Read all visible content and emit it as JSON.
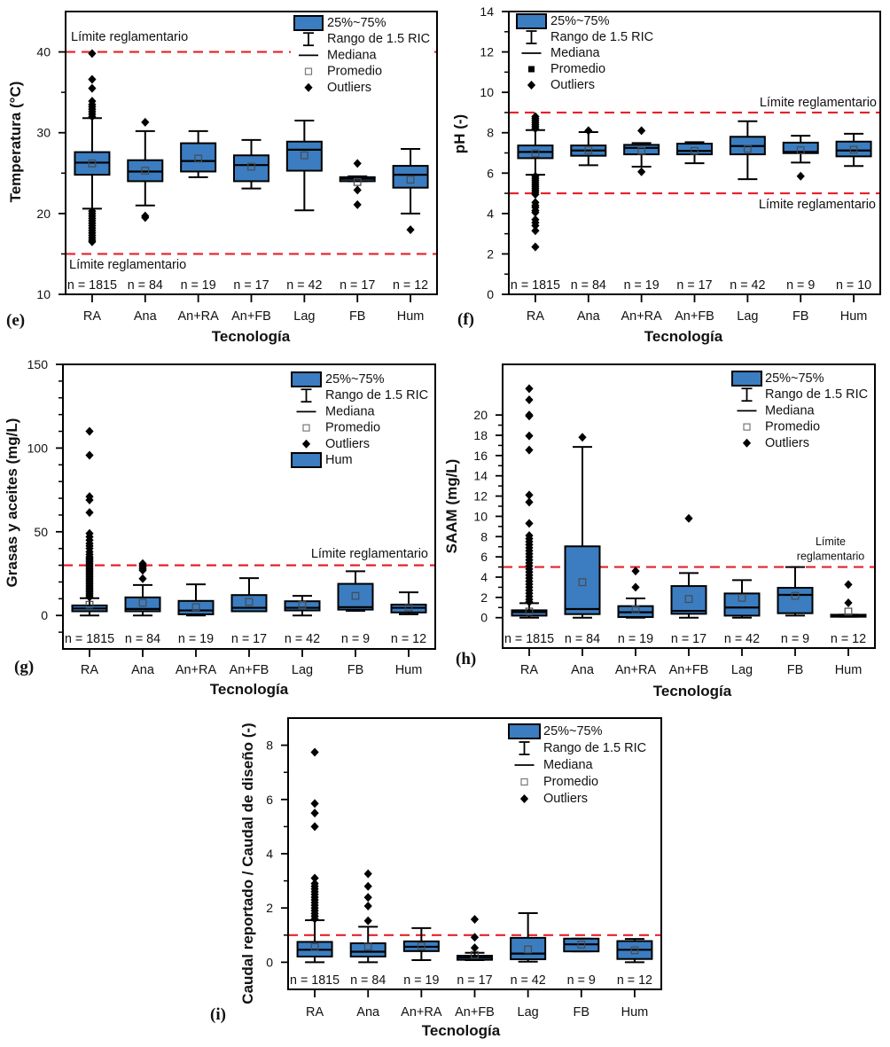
{
  "colors": {
    "box_fill": "#3b7dc0",
    "box_stroke": "#000000",
    "reference_line": "#e8202a",
    "outlier": "#000000",
    "mean_marker": "#4a4a4a"
  },
  "chart_data": [
    {
      "panel_label": "(e)",
      "type": "boxplot",
      "xlabel": "Tecnología",
      "ylabel": "Temperatura (°C)",
      "ylim": [
        10,
        45
      ],
      "yticks": [
        10,
        20,
        30,
        40
      ],
      "yminor_ticks": [
        15,
        25,
        35
      ],
      "grid": false,
      "categories": [
        "RA",
        "Ana",
        "An+RA",
        "An+FB",
        "Lag",
        "FB",
        "Hum"
      ],
      "n_labels": [
        "n = 1815",
        "n = 84",
        "n = 19",
        "n = 17",
        "n = 42",
        "n = 17",
        "n = 12"
      ],
      "series": [
        {
          "category": "RA",
          "q1": 24.8,
          "median": 26.3,
          "q3": 27.6,
          "whisker_low": 20.6,
          "whisker_high": 31.8,
          "mean": 26.2,
          "outliers": [
            39.8,
            36.6,
            35.5,
            33.9,
            33.5,
            33.2,
            32.9,
            32.6,
            32.3,
            32.0,
            20.3,
            20.0,
            19.7,
            19.4,
            19.1,
            18.8,
            18.5,
            18.2,
            17.9,
            17.6,
            17.3,
            17.0,
            16.7,
            16.5
          ]
        },
        {
          "category": "Ana",
          "q1": 24.0,
          "median": 25.2,
          "q3": 26.6,
          "whisker_low": 21.0,
          "whisker_high": 30.2,
          "mean": 25.3,
          "outliers": [
            31.3,
            19.7,
            19.5
          ]
        },
        {
          "category": "An+RA",
          "q1": 25.2,
          "median": 26.5,
          "q3": 28.7,
          "whisker_low": 24.5,
          "whisker_high": 30.2,
          "mean": 26.8,
          "outliers": []
        },
        {
          "category": "An+FB",
          "q1": 24.0,
          "median": 26.0,
          "q3": 27.2,
          "whisker_low": 23.1,
          "whisker_high": 29.1,
          "mean": 25.8,
          "outliers": []
        },
        {
          "category": "Lag",
          "q1": 25.3,
          "median": 27.9,
          "q3": 28.9,
          "whisker_low": 20.4,
          "whisker_high": 31.5,
          "mean": 27.2,
          "outliers": []
        },
        {
          "category": "FB",
          "q1": 24.0,
          "median": 24.3,
          "q3": 24.5,
          "whisker_low": 24.0,
          "whisker_high": 24.6,
          "mean": 23.9,
          "outliers": [
            26.2,
            22.9,
            21.1
          ]
        },
        {
          "category": "Hum",
          "q1": 23.2,
          "median": 24.8,
          "q3": 25.9,
          "whisker_low": 20.0,
          "whisker_high": 28.0,
          "mean": 24.2,
          "outliers": [
            18.0
          ]
        }
      ],
      "reference_lines": [
        {
          "value": 40,
          "style": "dashed",
          "label": [
            "Límite reglamentario"
          ],
          "label_position": "above-left"
        },
        {
          "value": 15,
          "style": "dashed",
          "label": [
            "Límite reglamentario"
          ],
          "label_position": "below-left"
        }
      ],
      "legend": {
        "position": "top-right",
        "items": [
          {
            "label": "25%~75%",
            "symbol": "box"
          },
          {
            "label": "Rango de 1.5 RIC",
            "symbol": "whisker"
          },
          {
            "label": "Mediana",
            "symbol": "line"
          },
          {
            "label": "Promedio",
            "symbol": "hollow-square"
          },
          {
            "label": "Outliers",
            "symbol": "diamond"
          }
        ]
      }
    },
    {
      "panel_label": "(f)",
      "type": "boxplot",
      "xlabel": "Tecnología",
      "ylabel": "pH (-)",
      "ylim": [
        0,
        14
      ],
      "yticks": [
        0,
        2,
        4,
        6,
        8,
        10,
        12,
        14
      ],
      "yminor_ticks": [
        1,
        3,
        5,
        7,
        9,
        11,
        13
      ],
      "grid": false,
      "categories": [
        "RA",
        "Ana",
        "An+RA",
        "An+FB",
        "Lag",
        "FB",
        "Hum"
      ],
      "n_labels": [
        "n = 1815",
        "n = 84",
        "n = 19",
        "n = 17",
        "n = 42",
        "n = 9",
        "n = 10"
      ],
      "series": [
        {
          "category": "RA",
          "q1": 6.74,
          "median": 7.05,
          "q3": 7.37,
          "whisker_low": 5.92,
          "whisker_high": 8.13,
          "mean": 6.98,
          "outliers": [
            8.8,
            8.7,
            8.6,
            8.5,
            8.4,
            8.3,
            8.2,
            5.85,
            5.75,
            5.65,
            5.55,
            5.45,
            5.35,
            5.25,
            5.15,
            5.05,
            4.95,
            4.55,
            4.4,
            4.3,
            4.15,
            4.05,
            3.7,
            3.55,
            3.4,
            3.15,
            2.35
          ]
        },
        {
          "category": "Ana",
          "q1": 6.86,
          "median": 7.12,
          "q3": 7.37,
          "whisker_low": 6.39,
          "whisker_high": 8.03,
          "mean": 7.15,
          "outliers": [
            8.1
          ]
        },
        {
          "category": "An+RA",
          "q1": 6.93,
          "median": 7.25,
          "q3": 7.4,
          "whisker_low": 6.32,
          "whisker_high": 7.49,
          "mean": 7.1,
          "outliers": [
            8.1,
            6.07
          ]
        },
        {
          "category": "An+FB",
          "q1": 6.93,
          "median": 7.1,
          "q3": 7.46,
          "whisker_low": 6.49,
          "whisker_high": 7.53,
          "mean": 7.1,
          "outliers": []
        },
        {
          "category": "Lag",
          "q1": 6.93,
          "median": 7.34,
          "q3": 7.8,
          "whisker_low": 5.7,
          "whisker_high": 8.57,
          "mean": 7.2,
          "outliers": []
        },
        {
          "category": "FB",
          "q1": 6.99,
          "median": 7.05,
          "q3": 7.51,
          "whisker_low": 6.52,
          "whisker_high": 7.85,
          "mean": 7.13,
          "outliers": [
            5.85
          ]
        },
        {
          "category": "Hum",
          "q1": 6.83,
          "median": 7.12,
          "q3": 7.56,
          "whisker_low": 6.35,
          "whisker_high": 7.95,
          "mean": 7.16,
          "outliers": []
        }
      ],
      "reference_lines": [
        {
          "value": 9,
          "style": "dashed",
          "label": [
            "Límite reglamentario"
          ],
          "label_position": "above-right"
        },
        {
          "value": 5,
          "style": "dashed",
          "label": [
            "Límite reglamentario"
          ],
          "label_position": "below-right"
        }
      ],
      "legend": {
        "position": "top-left",
        "items": [
          {
            "label": "25%~75%",
            "symbol": "box"
          },
          {
            "label": "Rango de 1.5 RIC",
            "symbol": "whisker"
          },
          {
            "label": "Mediana",
            "symbol": "line"
          },
          {
            "label": "Promedio",
            "symbol": "filled-square"
          },
          {
            "label": "Outliers",
            "symbol": "diamond"
          }
        ]
      }
    },
    {
      "panel_label": "(g)",
      "type": "boxplot",
      "xlabel": "Tecnología",
      "ylabel": "Grasas y aceites (mg/L)",
      "ylim": [
        -20,
        150
      ],
      "yticks": [
        0,
        50,
        100,
        150
      ],
      "yminor_ticks": [
        -10,
        10,
        20,
        30,
        40,
        60,
        70,
        80,
        90,
        110,
        120,
        130,
        140
      ],
      "grid": false,
      "categories": [
        "RA",
        "Ana",
        "An+RA",
        "An+FB",
        "Lag",
        "FB",
        "Hum"
      ],
      "n_labels": [
        "n = 1815",
        "n = 84",
        "n = 19",
        "n = 17",
        "n = 42",
        "n = 9",
        "n = 12"
      ],
      "series": [
        {
          "category": "RA",
          "q1": 2.5,
          "median": 4.2,
          "q3": 6.0,
          "whisker_low": 0,
          "whisker_high": 10.3,
          "mean": 6.4,
          "outliers": [
            110,
            95.7,
            71,
            69,
            61.5,
            49,
            47,
            45,
            43,
            41.5,
            40,
            38,
            36.5,
            35,
            34,
            33,
            32,
            31,
            30,
            29,
            28,
            27,
            26,
            25,
            24,
            23,
            22,
            21,
            20,
            19,
            18,
            17,
            16,
            15,
            14,
            13,
            12,
            11
          ]
        },
        {
          "category": "Ana",
          "q1": 2.5,
          "median": 3.9,
          "q3": 10.8,
          "whisker_low": 0,
          "whisker_high": 18.2,
          "mean": 7.6,
          "outliers": [
            31,
            30,
            29,
            28,
            27,
            22
          ]
        },
        {
          "category": "An+RA",
          "q1": 0.7,
          "median": 3.0,
          "q3": 8.7,
          "whisker_low": 0,
          "whisker_high": 18.6,
          "mean": 5.0,
          "outliers": []
        },
        {
          "category": "An+FB",
          "q1": 2.5,
          "median": 4.6,
          "q3": 12.2,
          "whisker_low": 2.5,
          "whisker_high": 22.3,
          "mean": 8.1,
          "outliers": []
        },
        {
          "category": "Lag",
          "q1": 3.0,
          "median": 4.6,
          "q3": 8.5,
          "whisker_low": 0,
          "whisker_high": 11.7,
          "mean": 6.4,
          "outliers": []
        },
        {
          "category": "FB",
          "q1": 3.5,
          "median": 5.0,
          "q3": 18.9,
          "whisker_low": 2.8,
          "whisker_high": 26.4,
          "mean": 11.7,
          "outliers": []
        },
        {
          "category": "Hum",
          "q1": 1.8,
          "median": 4.6,
          "q3": 6.5,
          "whisker_low": 0.7,
          "whisker_high": 13.8,
          "mean": 4.8,
          "outliers": []
        }
      ],
      "reference_lines": [
        {
          "value": 30,
          "style": "dashed",
          "label": [
            "Límite reglamentario"
          ],
          "label_position": "above-right"
        }
      ],
      "legend": {
        "position": "top-right",
        "items": [
          {
            "label": "25%~75%",
            "symbol": "box"
          },
          {
            "label": "Rango de 1.5 RIC",
            "symbol": "whisker"
          },
          {
            "label": "Mediana",
            "symbol": "line"
          },
          {
            "label": "Promedio",
            "symbol": "hollow-square"
          },
          {
            "label": "Outliers",
            "symbol": "diamond"
          },
          {
            "label": "Hum",
            "symbol": "box"
          }
        ]
      }
    },
    {
      "panel_label": "(h)",
      "type": "boxplot",
      "xlabel": "Tecnología",
      "ylabel": "SAAM (mg/L)",
      "ylim": [
        -3,
        25
      ],
      "yticks": [
        0,
        2,
        4,
        6,
        8,
        10,
        12,
        14,
        16,
        18,
        20
      ],
      "yminor_ticks": [
        1,
        3,
        5,
        7,
        9,
        11,
        13,
        15,
        17,
        19
      ],
      "grid": false,
      "categories": [
        "RA",
        "Ana",
        "An+RA",
        "An+FB",
        "Lag",
        "FB",
        "Hum"
      ],
      "n_labels": [
        "n = 1815",
        "n = 84",
        "n = 19",
        "n = 17",
        "n = 42",
        "n = 9",
        "n = 12"
      ],
      "series": [
        {
          "category": "RA",
          "q1": 0.2,
          "median": 0.55,
          "q3": 0.73,
          "whisker_low": 0,
          "whisker_high": 1.43,
          "mean": 0.6,
          "outliers": [
            22.6,
            21.5,
            20.0,
            19.9,
            17.95,
            16.55,
            12.1,
            11.4,
            9.3,
            8.1,
            7.8,
            7.5,
            7.2,
            6.9,
            6.6,
            6.3,
            6.0,
            5.7,
            5.4,
            5.1,
            4.8,
            4.5,
            4.2,
            3.9,
            3.6,
            3.3,
            3.0,
            2.7,
            2.4,
            2.1,
            1.8,
            1.55
          ]
        },
        {
          "category": "Ana",
          "q1": 0.35,
          "median": 0.85,
          "q3": 7.04,
          "whisker_low": 0,
          "whisker_high": 16.85,
          "mean": 3.5,
          "outliers": [
            17.8
          ]
        },
        {
          "category": "An+RA",
          "q1": 0.06,
          "median": 0.53,
          "q3": 1.14,
          "whisker_low": 0,
          "whisker_high": 1.9,
          "mean": 0.82,
          "outliers": [
            4.6,
            3.0
          ]
        },
        {
          "category": "An+FB",
          "q1": 0.38,
          "median": 0.67,
          "q3": 3.12,
          "whisker_low": 0,
          "whisker_high": 4.4,
          "mean": 1.84,
          "outliers": [
            9.8
          ]
        },
        {
          "category": "Lag",
          "q1": 0.2,
          "median": 1.0,
          "q3": 2.39,
          "whisker_low": 0,
          "whisker_high": 3.7,
          "mean": 1.96,
          "outliers": []
        },
        {
          "category": "FB",
          "q1": 0.44,
          "median": 2.25,
          "q3": 2.95,
          "whisker_low": 0.2,
          "whisker_high": 5.0,
          "mean": 2.16,
          "outliers": []
        },
        {
          "category": "Hum",
          "q1": 0.09,
          "median": 0.23,
          "q3": 0.29,
          "whisker_low": 0.09,
          "whisker_high": 0.29,
          "mean": 0.6,
          "outliers": [
            3.27,
            1.46
          ]
        }
      ],
      "reference_lines": [
        {
          "value": 5,
          "style": "dashed",
          "label": [
            "Límite",
            "reglamentario"
          ],
          "label_position": "above-right"
        }
      ],
      "legend": {
        "position": "top-right",
        "items": [
          {
            "label": "25%~75%",
            "symbol": "box"
          },
          {
            "label": "Rango de 1.5 RIC",
            "symbol": "whisker"
          },
          {
            "label": "Mediana",
            "symbol": "line"
          },
          {
            "label": "Promedio",
            "symbol": "hollow-square"
          },
          {
            "label": "Outliers",
            "symbol": "diamond"
          }
        ]
      }
    },
    {
      "panel_label": "(i)",
      "type": "boxplot",
      "xlabel": "Tecnología",
      "ylabel": "Caudal reportado / Caudal de diseño (-)",
      "ylim": [
        -1,
        9
      ],
      "yticks": [
        0,
        2,
        4,
        6,
        8
      ],
      "yminor_ticks": [
        1,
        3,
        5,
        7
      ],
      "grid": false,
      "categories": [
        "RA",
        "Ana",
        "An+RA",
        "An+FB",
        "Lag",
        "FB",
        "Hum"
      ],
      "n_labels": [
        "n = 1815",
        "n = 84",
        "n = 19",
        "n = 17",
        "n = 42",
        "n = 9",
        "n = 12"
      ],
      "series": [
        {
          "category": "RA",
          "q1": 0.21,
          "median": 0.46,
          "q3": 0.75,
          "whisker_low": 0,
          "whisker_high": 1.55,
          "mean": 0.56,
          "outliers": [
            7.74,
            5.85,
            5.5,
            5.0,
            3.1,
            2.9,
            2.8,
            2.7,
            2.6,
            2.5,
            2.4,
            2.3,
            2.2,
            2.1,
            2.0,
            1.9,
            1.8,
            1.7,
            1.6
          ]
        },
        {
          "category": "Ana",
          "q1": 0.21,
          "median": 0.39,
          "q3": 0.7,
          "whisker_low": 0,
          "whisker_high": 1.31,
          "mean": 0.58,
          "outliers": [
            3.26,
            2.8,
            2.39,
            2.07,
            1.53
          ]
        },
        {
          "category": "An+RA",
          "q1": 0.41,
          "median": 0.57,
          "q3": 0.77,
          "whisker_low": 0.08,
          "whisker_high": 1.26,
          "mean": 0.6,
          "outliers": []
        },
        {
          "category": "An+FB",
          "q1": 0.09,
          "median": 0.17,
          "q3": 0.24,
          "whisker_low": 0.08,
          "whisker_high": 0.35,
          "mean": 0.27,
          "outliers": [
            1.58,
            0.92,
            0.53
          ]
        },
        {
          "category": "Lag",
          "q1": 0.11,
          "median": 0.32,
          "q3": 0.9,
          "whisker_low": 0.02,
          "whisker_high": 1.81,
          "mean": 0.47,
          "outliers": []
        },
        {
          "category": "FB",
          "q1": 0.4,
          "median": 0.66,
          "q3": 0.87,
          "whisker_low": 0.4,
          "whisker_high": 0.87,
          "mean": 0.65,
          "outliers": []
        },
        {
          "category": "Hum",
          "q1": 0.12,
          "median": 0.46,
          "q3": 0.78,
          "whisker_low": 0,
          "whisker_high": 0.86,
          "mean": 0.44,
          "outliers": []
        }
      ],
      "reference_lines": [
        {
          "value": 1,
          "style": "dashed",
          "label": [],
          "label_position": "none"
        }
      ],
      "legend": {
        "position": "top-right",
        "items": [
          {
            "label": "25%~75%",
            "symbol": "box"
          },
          {
            "label": "Rango de 1.5 RIC",
            "symbol": "whisker"
          },
          {
            "label": "Mediana",
            "symbol": "line"
          },
          {
            "label": "Promedio",
            "symbol": "hollow-square"
          },
          {
            "label": "Outliers",
            "symbol": "diamond"
          }
        ]
      }
    }
  ]
}
